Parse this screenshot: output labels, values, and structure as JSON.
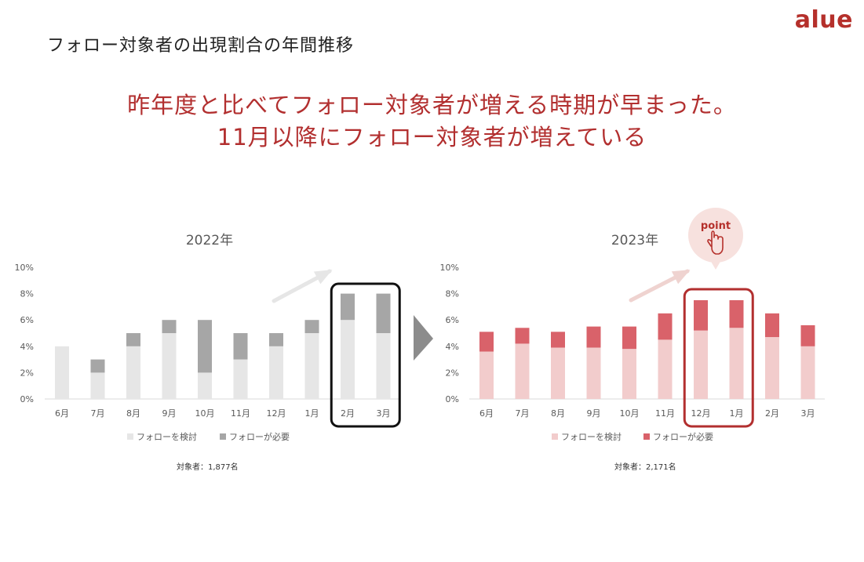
{
  "slide_title": "フォロー対象者の出現割合の年間推移",
  "logo_text": "alue",
  "headline": {
    "line1": "昨年度と比べてフォロー対象者が増える時期が早まった。",
    "line2": "11月以降にフォロー対象者が増えている"
  },
  "colors": {
    "accent": "#b22f2f",
    "logo": "#b5302b",
    "gray_base": "#e6e6e6",
    "gray_top": "#a6a6a6",
    "red_base": "#f2cccc",
    "red_top": "#d9626a",
    "arrow_gray": "#e6e6e6",
    "arrow_red": "#efd3d0",
    "point_bubble": "#f7e1de",
    "point_text": "#b5302b"
  },
  "point_badge": {
    "label": "point",
    "icon": "pointing-hand-icon"
  },
  "chart_data": [
    {
      "type": "bar",
      "stacked": true,
      "title": "2022年",
      "categories": [
        "6月",
        "7月",
        "8月",
        "9月",
        "10月",
        "11月",
        "12月",
        "1月",
        "2月",
        "3月"
      ],
      "series": [
        {
          "name": "フォローを検討",
          "values": [
            4,
            2,
            4,
            5,
            2,
            3,
            4,
            5,
            6,
            5
          ]
        },
        {
          "name": "フォローが必要",
          "values": [
            0,
            1,
            1,
            1,
            4,
            2,
            1,
            1,
            2,
            3
          ]
        }
      ],
      "ylim": [
        0,
        10
      ],
      "yticks": [
        "0%",
        "2%",
        "4%",
        "6%",
        "8%",
        "10%"
      ],
      "grid": false,
      "legend": "bottom",
      "highlight_categories": [
        "2月",
        "3月"
      ],
      "footnote": "対象者：1,877名"
    },
    {
      "type": "bar",
      "stacked": true,
      "title": "2023年",
      "categories": [
        "6月",
        "7月",
        "8月",
        "9月",
        "10月",
        "11月",
        "12月",
        "1月",
        "2月",
        "3月"
      ],
      "series": [
        {
          "name": "フォローを検討",
          "values": [
            3.6,
            4.2,
            3.9,
            3.9,
            3.8,
            4.5,
            5.2,
            5.4,
            4.7,
            4.0
          ]
        },
        {
          "name": "フォローが必要",
          "values": [
            1.5,
            1.2,
            1.2,
            1.6,
            1.7,
            2.0,
            2.3,
            2.1,
            1.8,
            1.6
          ]
        }
      ],
      "ylim": [
        0,
        10
      ],
      "yticks": [
        "0%",
        "2%",
        "4%",
        "6%",
        "8%",
        "10%"
      ],
      "grid": false,
      "legend": "bottom",
      "highlight_categories": [
        "12月",
        "1月"
      ],
      "footnote": "対象者：2,171名"
    }
  ]
}
